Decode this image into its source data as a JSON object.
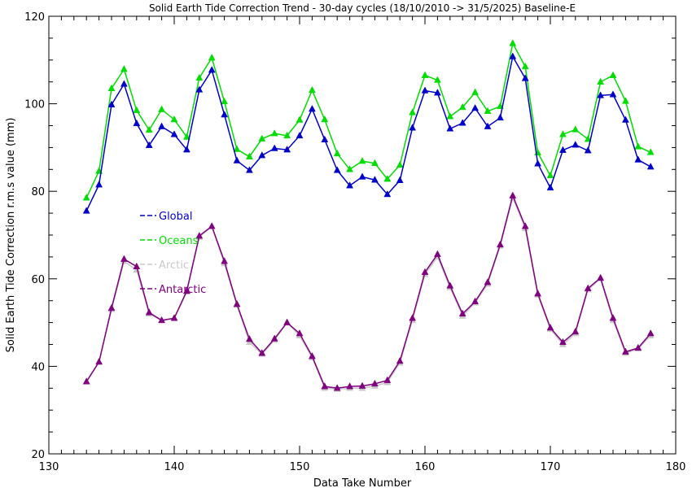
{
  "chart_data": {
    "type": "line",
    "title": "Solid Earth Tide Correction Trend - 30-day cycles (18/10/2010 -> 31/5/2025) Baseline-E",
    "xlabel": "Data Take Number",
    "ylabel": "Solid Earth Tide Correction r.m.s value (mm)",
    "xlim": [
      130,
      180
    ],
    "ylim": [
      20,
      120
    ],
    "xticks": [
      130,
      140,
      150,
      160,
      170,
      180
    ],
    "yticks": [
      20,
      40,
      60,
      80,
      100,
      120
    ],
    "grid": false,
    "legend_position": "left-middle",
    "x": [
      133,
      134,
      135,
      136,
      137,
      138,
      139,
      140,
      141,
      142,
      143,
      144,
      145,
      146,
      147,
      148,
      149,
      150,
      151,
      152,
      153,
      154,
      155,
      156,
      157,
      158,
      159,
      160,
      161,
      162,
      163,
      164,
      165,
      166,
      167,
      168,
      169,
      170,
      171,
      172,
      173,
      174,
      175,
      176,
      177,
      178
    ],
    "series": [
      {
        "name": "Global",
        "color": "#0000cc",
        "values": [
          75.5,
          81.5,
          99.8,
          104.5,
          95.5,
          90.5,
          94.8,
          93.0,
          89.5,
          103.2,
          107.7,
          97.5,
          87.0,
          84.8,
          88.2,
          89.8,
          89.5,
          92.7,
          98.8,
          91.8,
          84.8,
          81.3,
          83.3,
          82.6,
          79.3,
          82.5,
          94.5,
          103.0,
          102.5,
          94.3,
          95.6,
          99.0,
          94.8,
          96.8,
          110.8,
          105.8,
          86.3,
          80.8,
          89.4,
          90.6,
          89.3,
          101.9,
          102.1,
          96.3,
          87.2,
          85.6
        ]
      },
      {
        "name": "Oceans",
        "color": "#00dd00",
        "values": [
          78.5,
          84.6,
          103.5,
          107.9,
          98.5,
          94.0,
          98.7,
          96.4,
          92.4,
          105.9,
          110.5,
          100.5,
          89.6,
          87.9,
          92.0,
          93.2,
          92.7,
          96.3,
          103.1,
          96.4,
          88.6,
          85.0,
          86.9,
          86.4,
          82.8,
          86.0,
          98.0,
          106.5,
          105.4,
          97.1,
          99.2,
          102.6,
          98.3,
          99.4,
          113.8,
          108.5,
          88.8,
          83.6,
          93.0,
          94.1,
          91.9,
          105.0,
          106.5,
          100.6,
          90.2,
          88.9
        ]
      },
      {
        "name": "Arctic",
        "color": "#c8c8c8",
        "values": [
          36.5,
          41.0,
          53.0,
          64.0,
          62.0,
          52.0,
          50.5,
          51.0,
          57.0,
          69.5,
          72.0,
          63.5,
          54.0,
          45.5,
          42.8,
          46.0,
          50.0,
          47.0,
          42.0,
          35.0,
          34.8,
          35.0,
          35.0,
          35.5,
          36.3,
          40.8,
          50.5,
          61.0,
          65.0,
          58.0,
          51.5,
          54.5,
          58.8,
          67.5,
          78.5,
          71.5,
          56.3,
          48.5,
          45.0,
          47.5,
          57.5,
          60.0,
          50.5,
          43.0,
          44.0,
          47.0
        ]
      },
      {
        "name": "Antarctic",
        "color": "#800080",
        "values": [
          36.5,
          41.0,
          53.3,
          64.5,
          62.8,
          52.3,
          50.5,
          51.0,
          57.2,
          69.8,
          72.0,
          64.0,
          54.2,
          46.2,
          43.0,
          46.3,
          50.0,
          47.5,
          42.3,
          35.4,
          35.0,
          35.4,
          35.5,
          36.0,
          36.8,
          41.2,
          51.0,
          61.5,
          65.6,
          58.4,
          52.0,
          54.8,
          59.2,
          67.8,
          79.0,
          72.0,
          56.6,
          48.8,
          45.5,
          47.9,
          57.8,
          60.2,
          51.0,
          43.3,
          44.2,
          47.5
        ]
      }
    ]
  }
}
